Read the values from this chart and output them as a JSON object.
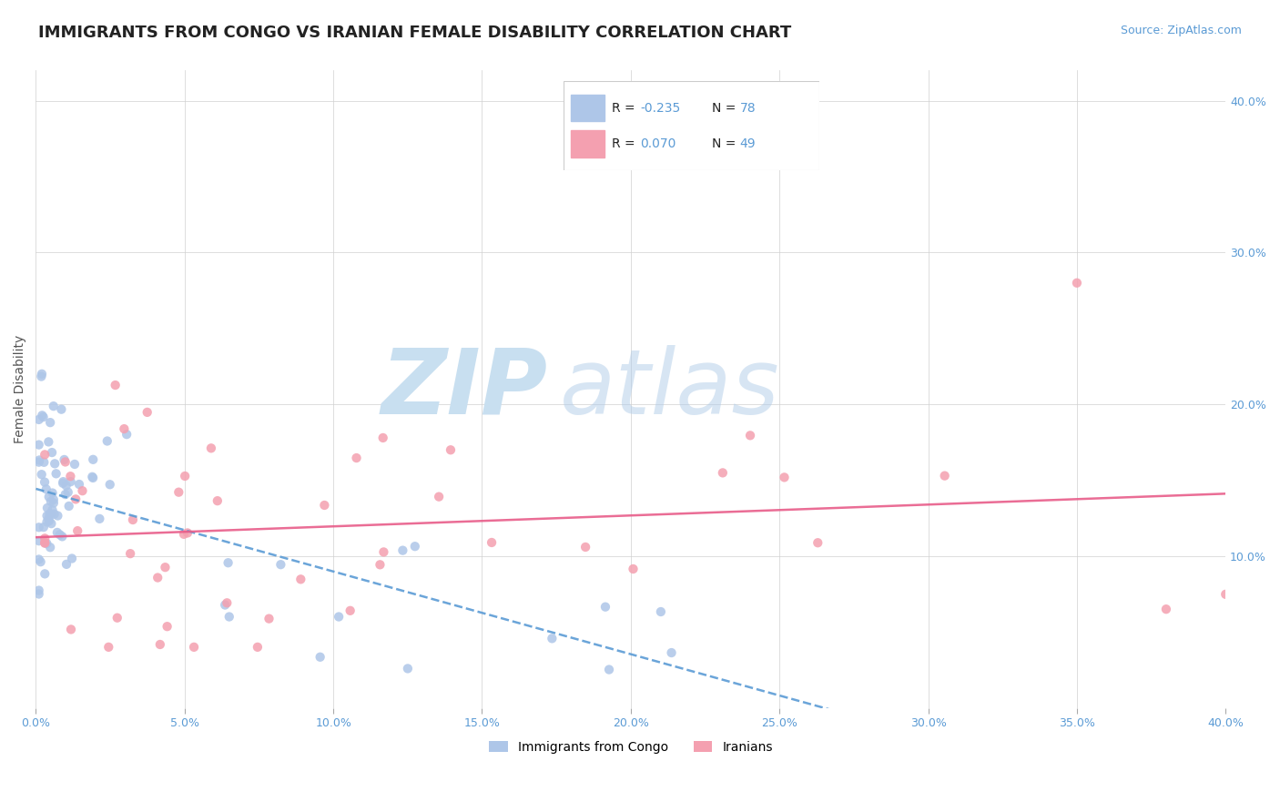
{
  "title": "IMMIGRANTS FROM CONGO VS IRANIAN FEMALE DISABILITY CORRELATION CHART",
  "source": "Source: ZipAtlas.com",
  "ylabel": "Female Disability",
  "xlim": [
    0.0,
    0.4
  ],
  "ylim": [
    0.0,
    0.42
  ],
  "congo_color": "#aec6e8",
  "congo_line_color": "#5b9bd5",
  "iranian_color": "#f4a0b0",
  "iranian_line_color": "#e85d8a",
  "background_color": "#ffffff",
  "grid_color": "#d0d0d0",
  "watermark_color": "#c8dff0",
  "tick_color": "#5b9bd5",
  "title_color": "#222222",
  "source_color": "#5b9bd5",
  "right_yticks": [
    0.1,
    0.2,
    0.3,
    0.4
  ],
  "right_yticklabels": [
    "10.0%",
    "20.0%",
    "30.0%",
    "40.0%"
  ],
  "xtick_values": [
    0.0,
    0.05,
    0.1,
    0.15,
    0.2,
    0.25,
    0.3,
    0.35,
    0.4
  ],
  "legend_blue_r": "R = -0.235",
  "legend_blue_n": "N = 78",
  "legend_pink_r": "R =  0.070",
  "legend_pink_n": "N = 49",
  "bottom_legend_congo": "Immigrants from Congo",
  "bottom_legend_iranian": "Iranians"
}
